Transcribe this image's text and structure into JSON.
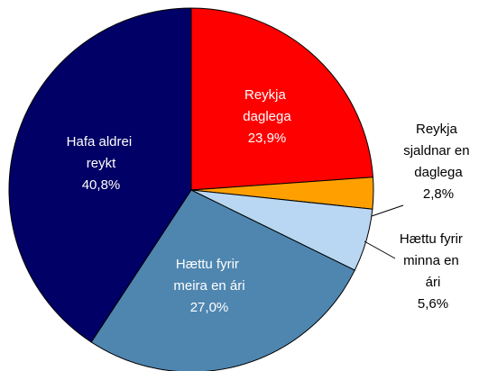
{
  "chart_data": {
    "type": "pie",
    "categories": [
      "Reykja daglega",
      "Reykja sjaldnar en daglega",
      "Hættu fyrir minna en ári",
      "Hættu fyrir meira en ári",
      "Hafa aldrei reykt"
    ],
    "values": [
      23.9,
      2.8,
      5.6,
      27.0,
      40.8
    ],
    "value_labels": [
      "23,9%",
      "2,8%",
      "5,6%",
      "27,0%",
      "40,8%"
    ],
    "colors": [
      "#ff0000",
      "#ffa000",
      "#b9d6f2",
      "#4f86b0",
      "#000066"
    ]
  }
}
